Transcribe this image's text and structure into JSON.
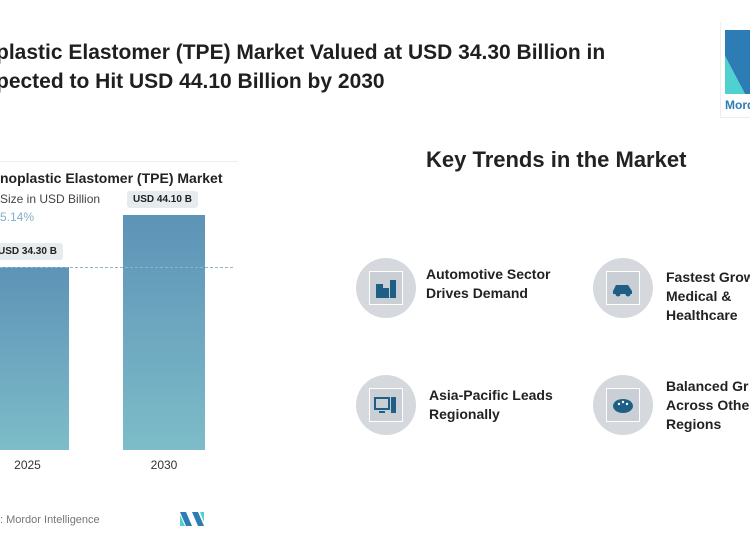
{
  "headline": {
    "line1": "plastic Elastomer (TPE) Market Valued at USD 34.30 Billion in",
    "line2": "pected to Hit USD 44.10 Billion by 2030"
  },
  "logo": {
    "text": "Mord"
  },
  "chart_data": {
    "type": "bar",
    "title": "noplastic Elastomer (TPE) Market",
    "subtitle": "Size in USD Billion",
    "cagr": "5.14%",
    "categories": [
      "2025",
      "2030"
    ],
    "values": [
      34.3,
      44.1
    ],
    "data_labels": [
      "USD 34.30 B",
      "USD 44.10 B"
    ],
    "reference_line": 34.3,
    "ylim": [
      0,
      50
    ],
    "grid": false
  },
  "source": ": Mordor Intelligence",
  "trends": {
    "title": "Key Trends in the Market",
    "items": [
      {
        "line1": "Automotive Sector",
        "line2": "Drives Demand",
        "line3": "",
        "icon": "buildings-icon"
      },
      {
        "line1": "Fastest Grow",
        "line2": "Medical &",
        "line3": "Healthcare",
        "icon": "car-icon"
      },
      {
        "line1": "Asia-Pacific Leads",
        "line2": "Regionally",
        "line3": "",
        "icon": "computer-icon"
      },
      {
        "line1": "Balanced Gr",
        "line2": "Across Othe",
        "line3": "Regions",
        "icon": "palette-icon"
      }
    ]
  },
  "colors": {
    "accent": "#1f5f85",
    "bar_top": "#5d93b7",
    "bar_bottom": "#7dbcc8",
    "logo_blue": "#2e7cb5",
    "logo_teal": "#4fd1cf"
  }
}
